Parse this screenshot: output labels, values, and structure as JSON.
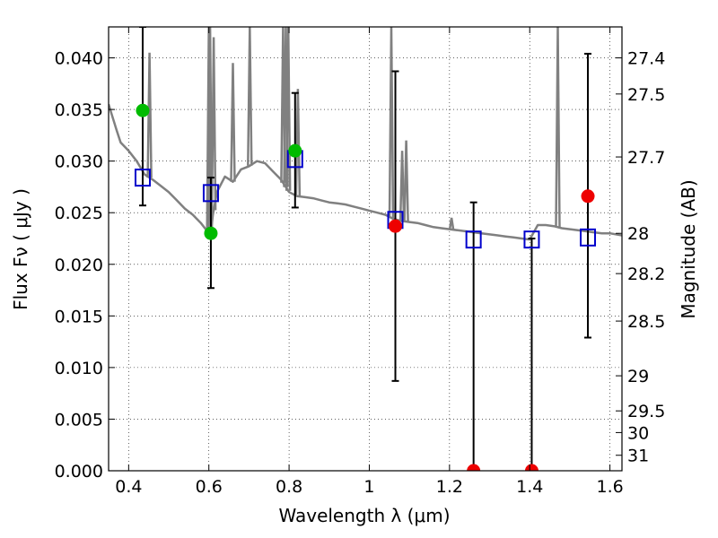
{
  "chart_data": {
    "type": "scatter",
    "xlabel": "Wavelength  λ (μm)",
    "ylabel": "Flux  Fν  ( μJy )",
    "y2label": "Magnitude (AB)",
    "xlim": [
      0.35,
      1.63
    ],
    "ylim": [
      0.0,
      0.043
    ],
    "grid": true,
    "x_ticks": [
      0.4,
      0.6,
      0.8,
      1.0,
      1.2,
      1.4,
      1.6
    ],
    "x_tick_labels": [
      "0.4",
      "0.6",
      "0.8",
      "1",
      "1.2",
      "1.4",
      "1.6"
    ],
    "y_ticks": [
      0.0,
      0.005,
      0.01,
      0.015,
      0.02,
      0.025,
      0.03,
      0.035,
      0.04
    ],
    "y_tick_labels": [
      "0.000",
      "0.005",
      "0.010",
      "0.015",
      "0.020",
      "0.025",
      "0.030",
      "0.035",
      "0.040"
    ],
    "y2_ticks": [
      {
        "flux": 0.04,
        "label": "27.4"
      },
      {
        "flux": 0.0365,
        "label": "27.5"
      },
      {
        "flux": 0.0304,
        "label": "27.7"
      },
      {
        "flux": 0.023,
        "label": "28"
      },
      {
        "flux": 0.0191,
        "label": "28.2"
      },
      {
        "flux": 0.0145,
        "label": "28.5"
      },
      {
        "flux": 0.0092,
        "label": "29"
      },
      {
        "flux": 0.0058,
        "label": "29.5"
      },
      {
        "flux": 0.0037,
        "label": "30"
      },
      {
        "flux": 0.0015,
        "label": "31"
      }
    ],
    "model_spectrum": {
      "color": "#808080",
      "x": [
        0.35,
        0.37,
        0.38,
        0.4,
        0.42,
        0.44,
        0.46,
        0.48,
        0.5,
        0.52,
        0.54,
        0.56,
        0.58,
        0.59,
        0.6,
        0.605,
        0.61,
        0.62,
        0.64,
        0.66,
        0.68,
        0.7,
        0.72,
        0.74,
        0.76,
        0.78,
        0.8,
        0.82,
        0.84,
        0.86,
        0.88,
        0.9,
        0.92,
        0.94,
        0.96,
        0.98,
        1.0,
        1.02,
        1.04,
        1.06,
        1.08,
        1.1,
        1.12,
        1.14,
        1.16,
        1.18,
        1.2,
        1.22,
        1.24,
        1.26,
        1.28,
        1.3,
        1.32,
        1.34,
        1.36,
        1.38,
        1.4,
        1.42,
        1.44,
        1.46,
        1.48,
        1.5,
        1.52,
        1.54,
        1.56,
        1.58,
        1.6,
        1.63
      ],
      "y": [
        0.0355,
        0.033,
        0.0318,
        0.031,
        0.03,
        0.0287,
        0.0282,
        0.0276,
        0.027,
        0.0262,
        0.0254,
        0.0248,
        0.024,
        0.0235,
        0.023,
        0.0231,
        0.0248,
        0.027,
        0.0285,
        0.028,
        0.0292,
        0.0295,
        0.03,
        0.0298,
        0.029,
        0.0282,
        0.027,
        0.0266,
        0.0265,
        0.0264,
        0.0262,
        0.026,
        0.0259,
        0.0258,
        0.0256,
        0.0254,
        0.0252,
        0.025,
        0.0248,
        0.0244,
        0.0242,
        0.0241,
        0.024,
        0.0238,
        0.0236,
        0.0235,
        0.0234,
        0.0233,
        0.0232,
        0.0231,
        0.023,
        0.0229,
        0.0228,
        0.0227,
        0.0226,
        0.0225,
        0.0224,
        0.0238,
        0.0238,
        0.0237,
        0.0235,
        0.0234,
        0.0233,
        0.0232,
        0.0231,
        0.023,
        0.023,
        0.0228
      ],
      "spikes": [
        {
          "x": 0.452,
          "y": 0.0405
        },
        {
          "x": 0.6,
          "y": 0.043
        },
        {
          "x": 0.603,
          "y": 0.043
        },
        {
          "x": 0.612,
          "y": 0.042
        },
        {
          "x": 0.66,
          "y": 0.0395
        },
        {
          "x": 0.702,
          "y": 0.043
        },
        {
          "x": 0.785,
          "y": 0.043
        },
        {
          "x": 0.792,
          "y": 0.043
        },
        {
          "x": 0.798,
          "y": 0.043
        },
        {
          "x": 0.822,
          "y": 0.037
        },
        {
          "x": 1.055,
          "y": 0.043
        },
        {
          "x": 1.082,
          "y": 0.031
        },
        {
          "x": 1.092,
          "y": 0.032
        },
        {
          "x": 1.205,
          "y": 0.0245
        },
        {
          "x": 1.47,
          "y": 0.043
        }
      ]
    },
    "model_photometry": {
      "marker": "open-square",
      "color": "#0000cc",
      "x": [
        0.435,
        0.605,
        0.815,
        1.065,
        1.26,
        1.405,
        1.545
      ],
      "y": [
        0.0284,
        0.0269,
        0.0302,
        0.0243,
        0.0224,
        0.0224,
        0.0226
      ]
    },
    "observed_detected": {
      "marker": "filled-circle",
      "color": "#00bb00",
      "x": [
        0.435,
        0.605,
        0.815
      ],
      "y": [
        0.0349,
        0.023,
        0.031
      ],
      "err_low": [
        0.0257,
        0.0177,
        0.0255
      ],
      "err_high": [
        0.043,
        0.0284,
        0.0366
      ]
    },
    "observed_upper": {
      "marker": "filled-circle",
      "color": "#ee0000",
      "x": [
        1.065,
        1.26,
        1.405,
        1.545
      ],
      "y": [
        0.0237,
        0.0,
        0.0,
        0.0266
      ],
      "err_low": [
        0.0087,
        0.0,
        0.0,
        0.0129
      ],
      "err_high": [
        0.0387,
        0.026,
        0.0225,
        0.0404
      ]
    }
  }
}
